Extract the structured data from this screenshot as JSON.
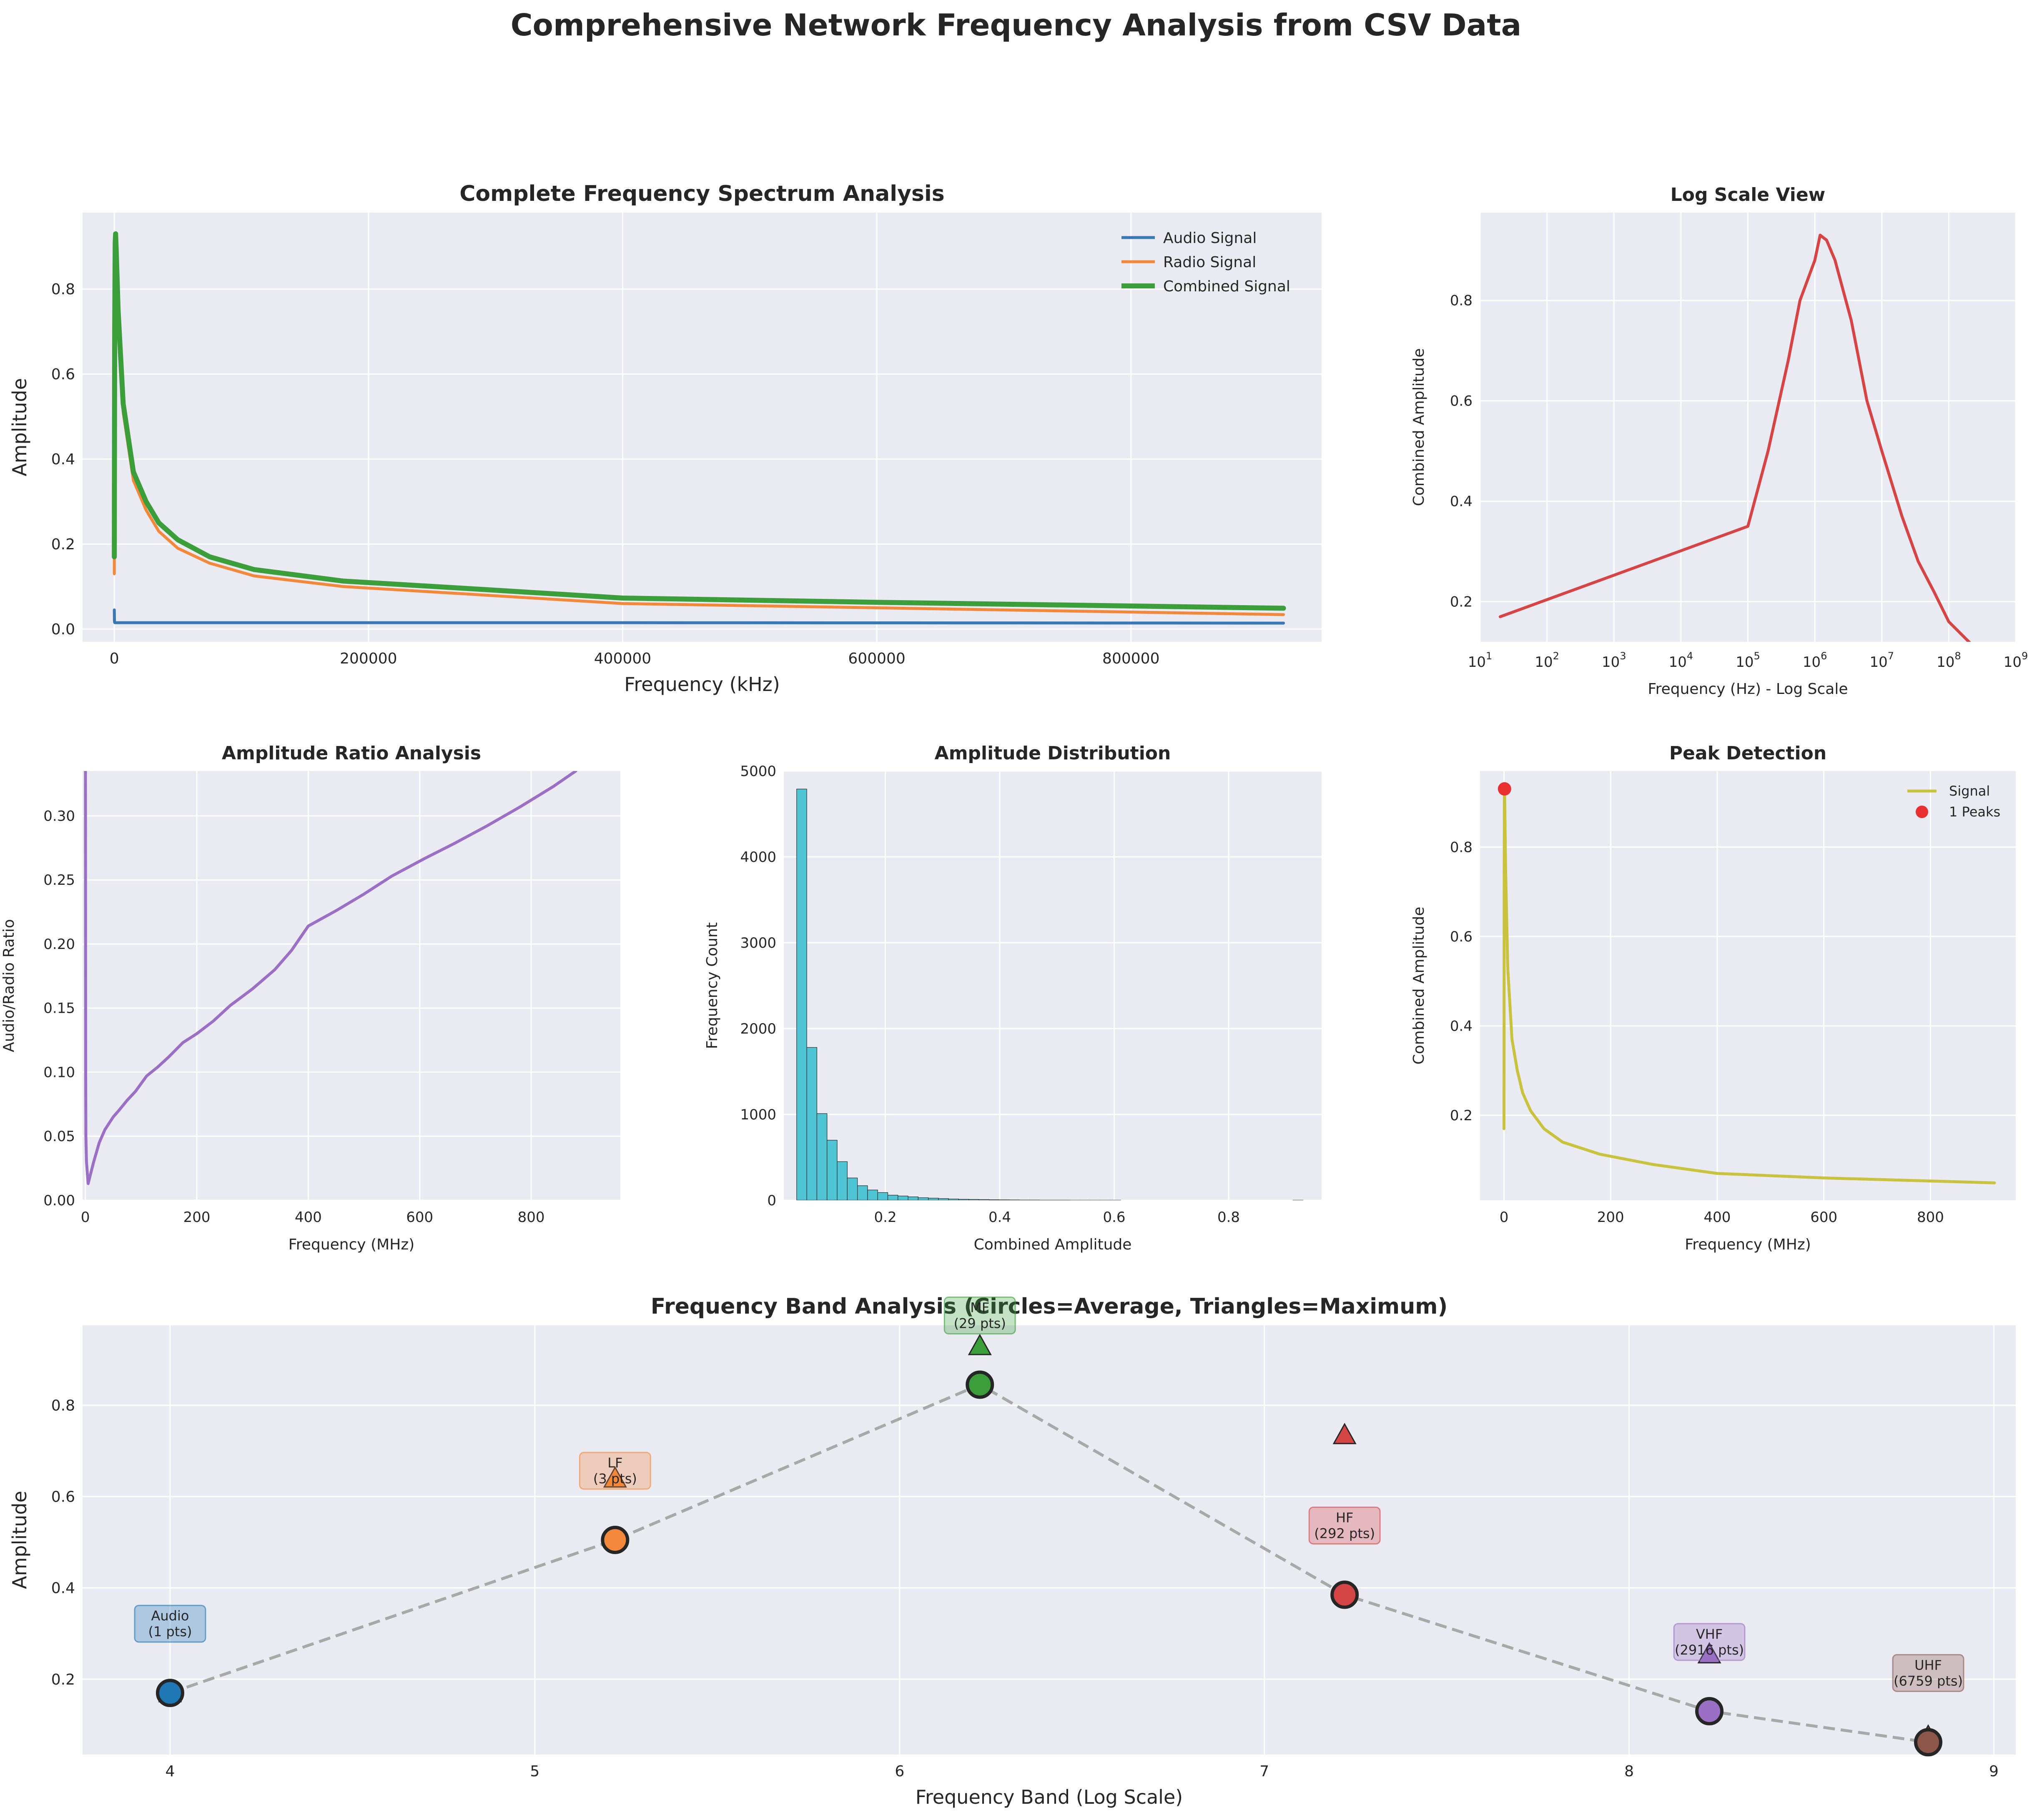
{
  "figure": {
    "title": "Comprehensive Network Frequency Analysis from CSV Data",
    "background": "#ffffff",
    "axes_background": "#eaeaf2",
    "grid_color": "#ffffff"
  },
  "chart_data": [
    {
      "id": "spectrum",
      "type": "line",
      "title": "Complete Frequency Spectrum Analysis",
      "xlabel": "Frequency (kHz)",
      "ylabel": "Amplitude",
      "xlim": [
        -25000,
        950000
      ],
      "ylim": [
        -0.03,
        0.98
      ],
      "xticks": [
        0,
        200000,
        400000,
        600000,
        800000
      ],
      "xtick_labels": [
        "0",
        "200000",
        "400000",
        "600000",
        "800000"
      ],
      "yticks": [
        0.0,
        0.2,
        0.4,
        0.6,
        0.8
      ],
      "ytick_labels": [
        "0.0",
        "0.2",
        "0.4",
        "0.6",
        "0.8"
      ],
      "grid": true,
      "legend": "top-right",
      "series": [
        {
          "name": "Audio Signal",
          "color": "#3a78b5",
          "x": [
            0,
            50,
            100,
            200,
            500,
            2000,
            50000,
            400000,
            920000
          ],
          "y": [
            0.045,
            0.03,
            0.02,
            0.016,
            0.015,
            0.015,
            0.015,
            0.015,
            0.014
          ]
        },
        {
          "name": "Radio Signal",
          "color": "#f4883a",
          "x": [
            0,
            100,
            300,
            700,
            1000,
            1500,
            3000,
            7000,
            15000,
            25000,
            35000,
            50000,
            75000,
            110000,
            180000,
            280000,
            400000,
            600000,
            920000
          ],
          "y": [
            0.13,
            0.33,
            0.66,
            0.89,
            0.91,
            0.87,
            0.73,
            0.51,
            0.35,
            0.28,
            0.23,
            0.19,
            0.155,
            0.125,
            0.1,
            0.082,
            0.06,
            0.05,
            0.034
          ]
        },
        {
          "name": "Combined Signal",
          "color": "#3b9e3b",
          "x": [
            0,
            100,
            300,
            700,
            1000,
            1500,
            3000,
            7000,
            15000,
            25000,
            35000,
            50000,
            75000,
            110000,
            180000,
            280000,
            400000,
            600000,
            920000
          ],
          "y": [
            0.17,
            0.37,
            0.7,
            0.91,
            0.93,
            0.89,
            0.75,
            0.53,
            0.37,
            0.3,
            0.25,
            0.21,
            0.17,
            0.14,
            0.113,
            0.095,
            0.073,
            0.063,
            0.049
          ]
        }
      ]
    },
    {
      "id": "logscale",
      "type": "line",
      "title": "Log Scale View",
      "xlabel": "Frequency (Hz) - Log Scale",
      "ylabel": "Combined Amplitude",
      "xscale": "log",
      "xlim": [
        10,
        1000000000
      ],
      "ylim": [
        0.12,
        0.975
      ],
      "xticks": [
        10,
        100,
        1000,
        10000,
        100000,
        1000000,
        10000000,
        100000000,
        1000000000
      ],
      "xtick_bases": [
        "10",
        "10",
        "10",
        "10",
        "10",
        "10",
        "10",
        "10",
        "10"
      ],
      "xtick_exps": [
        "1",
        "2",
        "3",
        "4",
        "5",
        "6",
        "7",
        "8",
        "9"
      ],
      "yticks": [
        0.2,
        0.4,
        0.6,
        0.8
      ],
      "ytick_labels": [
        "0.2",
        "0.4",
        "0.6",
        "0.8"
      ],
      "grid": true,
      "series": [
        {
          "name": "",
          "color": "#d64545",
          "x": [
            20,
            100000,
            200000,
            400000,
            600000,
            1000000,
            1200000,
            1500000,
            2000000,
            3500000,
            6000000,
            10000000,
            20000000,
            35000000,
            60000000,
            100000000,
            200000000,
            400000000,
            900000000
          ],
          "y": [
            0.17,
            0.35,
            0.5,
            0.68,
            0.8,
            0.88,
            0.93,
            0.92,
            0.88,
            0.76,
            0.6,
            0.5,
            0.37,
            0.28,
            0.22,
            0.16,
            0.12,
            0.08,
            0.05
          ]
        }
      ]
    },
    {
      "id": "ratio",
      "type": "line",
      "title": "Amplitude Ratio Analysis",
      "xlabel": "Frequency (MHz)",
      "ylabel": "Audio/Radio Ratio",
      "xlim": [
        -5,
        960
      ],
      "ylim": [
        0.0,
        0.335
      ],
      "xticks": [
        0,
        200,
        400,
        600,
        800
      ],
      "xtick_labels": [
        "0",
        "200",
        "400",
        "600",
        "800"
      ],
      "yticks": [
        0.0,
        0.05,
        0.1,
        0.15,
        0.2,
        0.25,
        0.3
      ],
      "ytick_labels": [
        "0.00",
        "0.05",
        "0.10",
        "0.15",
        "0.20",
        "0.25",
        "0.30"
      ],
      "grid": true,
      "series": [
        {
          "name": "",
          "color": "#9b6fc4",
          "x": [
            0.2,
            0.6,
            1,
            2,
            5,
            15,
            25,
            35,
            50,
            60,
            75,
            90,
            110,
            130,
            150,
            175,
            200,
            230,
            260,
            300,
            340,
            370,
            400,
            450,
            500,
            550,
            610,
            660,
            720,
            780,
            840,
            880
          ],
          "y": [
            0.34,
            0.1,
            0.05,
            0.03,
            0.013,
            0.03,
            0.045,
            0.055,
            0.065,
            0.07,
            0.078,
            0.085,
            0.097,
            0.104,
            0.112,
            0.123,
            0.13,
            0.14,
            0.152,
            0.165,
            0.18,
            0.195,
            0.214,
            0.226,
            0.239,
            0.253,
            0.267,
            0.278,
            0.292,
            0.307,
            0.323,
            0.335
          ]
        }
      ]
    },
    {
      "id": "histogram",
      "type": "bar",
      "title": "Amplitude Distribution",
      "xlabel": "Combined Amplitude",
      "ylabel": "Frequency Count",
      "xlim": [
        0.0225,
        0.9625
      ],
      "ylim": [
        0,
        5000
      ],
      "xticks": [
        0.2,
        0.4,
        0.6,
        0.8
      ],
      "xtick_labels": [
        "0.2",
        "0.4",
        "0.6",
        "0.8"
      ],
      "yticks": [
        0,
        1000,
        2000,
        3000,
        4000,
        5000
      ],
      "ytick_labels": [
        "0",
        "1000",
        "2000",
        "3000",
        "4000",
        "5000"
      ],
      "grid": true,
      "bar_color": "#4fc4d4",
      "bin_start": 0.045,
      "bin_width": 0.0177,
      "values": [
        4790,
        1780,
        1010,
        700,
        450,
        260,
        170,
        120,
        90,
        60,
        50,
        40,
        30,
        25,
        20,
        15,
        12,
        10,
        8,
        6,
        5,
        4,
        3,
        3,
        2,
        2,
        2,
        1,
        1,
        1,
        1,
        1,
        0,
        0,
        0,
        0,
        0,
        0,
        0,
        0,
        0,
        0,
        0,
        0,
        0,
        0,
        0,
        0,
        0,
        1
      ]
    },
    {
      "id": "peaks",
      "type": "line",
      "title": "Peak Detection",
      "xlabel": "Frequency (MHz)",
      "ylabel": "Combined Amplitude",
      "xlim": [
        -45,
        960
      ],
      "ylim": [
        0.01,
        0.97
      ],
      "xticks": [
        0,
        200,
        400,
        600,
        800
      ],
      "xtick_labels": [
        "0",
        "200",
        "400",
        "600",
        "800"
      ],
      "yticks": [
        0.2,
        0.4,
        0.6,
        0.8
      ],
      "ytick_labels": [
        "0.2",
        "0.4",
        "0.6",
        "0.8"
      ],
      "grid": true,
      "legend": "top-right",
      "series": [
        {
          "name": "Signal",
          "color": "#c8c23c",
          "x": [
            0,
            0.1,
            0.3,
            0.7,
            1,
            1.5,
            3,
            7,
            15,
            25,
            35,
            50,
            75,
            110,
            180,
            280,
            400,
            600,
            920
          ],
          "y": [
            0.17,
            0.37,
            0.7,
            0.91,
            0.93,
            0.89,
            0.75,
            0.53,
            0.37,
            0.3,
            0.25,
            0.21,
            0.17,
            0.14,
            0.113,
            0.09,
            0.07,
            0.06,
            0.049
          ]
        }
      ],
      "peak_series": {
        "name": "1 Peaks",
        "color": "#e83030",
        "x": [
          1
        ],
        "y": [
          0.93
        ]
      }
    },
    {
      "id": "bands",
      "type": "scatter",
      "title": "Frequency Band Analysis (Circles=Average, Triangles=Maximum)",
      "xlabel": "Frequency Band (Log Scale)",
      "ylabel": "Amplitude",
      "xlim": [
        3.76,
        9.06
      ],
      "ylim": [
        0.035,
        0.975
      ],
      "xticks": [
        4,
        5,
        6,
        7,
        8,
        9
      ],
      "xtick_labels": [
        "4",
        "5",
        "6",
        "7",
        "8",
        "9"
      ],
      "yticks": [
        0.2,
        0.4,
        0.6,
        0.8
      ],
      "ytick_labels": [
        "0.2",
        "0.4",
        "0.6",
        "0.8"
      ],
      "grid": true,
      "line_color": "#a8a8a8",
      "bands": [
        {
          "name": "Audio",
          "pts": "(1 pts)",
          "x": 4.0,
          "avg": 0.17,
          "max": 0.17,
          "color": "#1f77b4"
        },
        {
          "name": "LF",
          "pts": "(3 pts)",
          "x": 5.22,
          "avg": 0.505,
          "max": 0.64,
          "color": "#f4883a"
        },
        {
          "name": "MF",
          "pts": "(29 pts)",
          "x": 6.22,
          "avg": 0.845,
          "max": 0.93,
          "color": "#3b9e3b"
        },
        {
          "name": "HF",
          "pts": "(292 pts)",
          "x": 7.22,
          "avg": 0.385,
          "max": 0.735,
          "color": "#d64545"
        },
        {
          "name": "VHF",
          "pts": "(2916 pts)",
          "x": 8.22,
          "avg": 0.13,
          "max": 0.255,
          "color": "#9b6fc4"
        },
        {
          "name": "UHF",
          "pts": "(6759 pts)",
          "x": 8.82,
          "avg": 0.062,
          "max": 0.075,
          "color": "#8c564b"
        }
      ]
    }
  ]
}
